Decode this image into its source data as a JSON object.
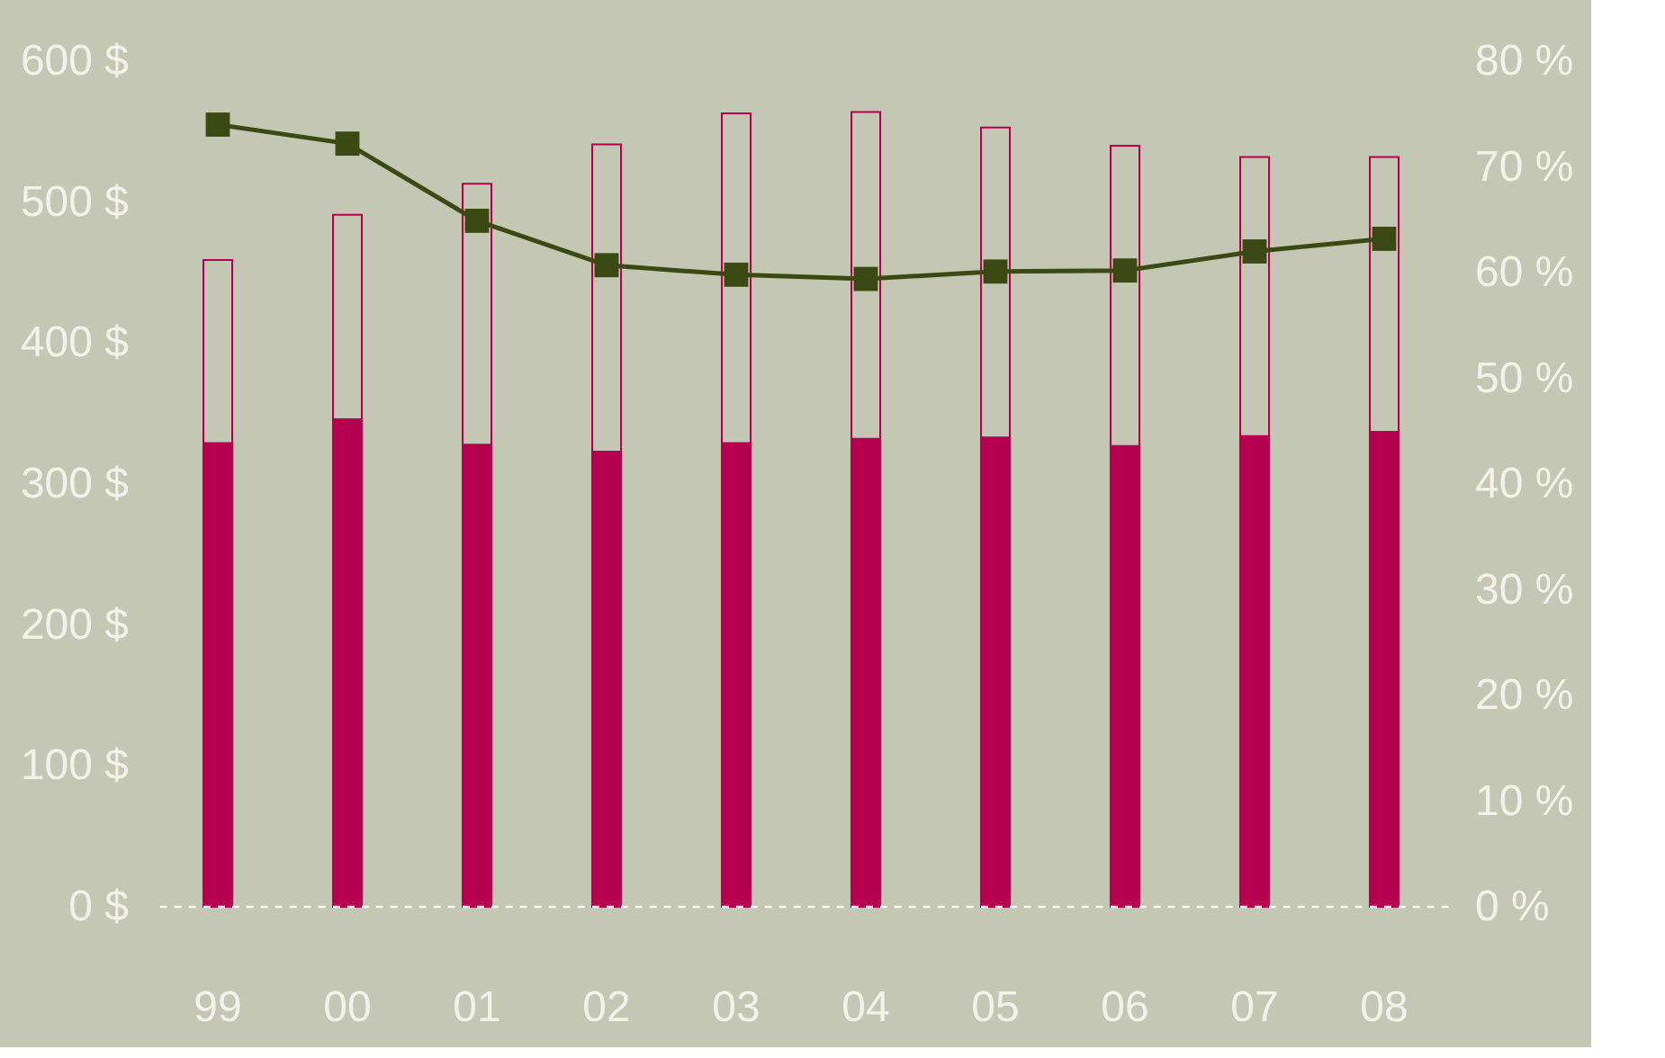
{
  "chart_data": {
    "type": "bar",
    "stacked": true,
    "grid": false,
    "categories": [
      "99",
      "00",
      "01",
      "02",
      "03",
      "04",
      "05",
      "06",
      "07",
      "08"
    ],
    "series": [
      {
        "color": "#b5004f",
        "values": [
          329,
          346,
          328,
          323,
          329,
          332,
          333,
          327,
          334,
          337
        ]
      },
      {
        "color": "#c4c7b3",
        "values": [
          130,
          145,
          185,
          218,
          234,
          232,
          220,
          213,
          198,
          195
        ]
      },
      {
        "type": "line",
        "axis": "y2",
        "color": "#3a4a12",
        "marker": "square",
        "line_style": "solid",
        "values": [
          74.0,
          72.2,
          64.9,
          60.7,
          59.8,
          59.4,
          60.1,
          60.2,
          62.0,
          63.2
        ]
      }
    ],
    "ylim": [
      0,
      600
    ],
    "yticks": [
      {
        "value": 0,
        "label": "0 $"
      },
      {
        "value": 100,
        "label": "100 $"
      },
      {
        "value": 200,
        "label": "200 $"
      },
      {
        "value": 300,
        "label": "300 $"
      },
      {
        "value": 400,
        "label": "400 $"
      },
      {
        "value": 500,
        "label": "500 $"
      },
      {
        "value": 600,
        "label": "600 $"
      }
    ],
    "y2lim": [
      0,
      80
    ],
    "y2ticks": [
      {
        "value": 0,
        "label": "0 %"
      },
      {
        "value": 10,
        "label": "10 %"
      },
      {
        "value": 20,
        "label": "20 %"
      },
      {
        "value": 30,
        "label": "30 %"
      },
      {
        "value": 40,
        "label": "40 %"
      },
      {
        "value": 50,
        "label": "50 %"
      },
      {
        "value": 60,
        "label": "60 %"
      },
      {
        "value": 70,
        "label": "70 %"
      },
      {
        "value": 80,
        "label": "80 %"
      }
    ],
    "ref_lines": [
      {
        "axis": "y",
        "value": 0,
        "color": "#ffffff",
        "line_style": "dashed"
      }
    ]
  }
}
